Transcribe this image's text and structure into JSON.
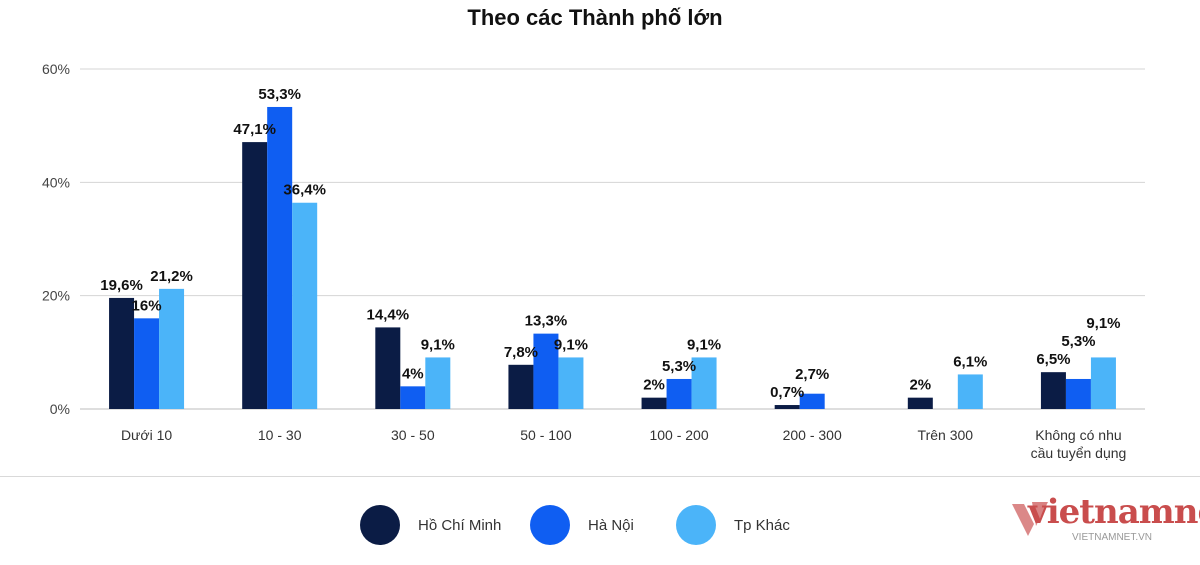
{
  "chart_data": {
    "type": "bar",
    "title": "Theo các Thành phố lớn",
    "categories": [
      "Dưới 10",
      "10 - 30",
      "30 - 50",
      "50 - 100",
      "100 - 200",
      "200 - 300",
      "Trên 300",
      "Không có nhu cầu tuyển dụng"
    ],
    "category_lines": [
      [
        "Dưới 10"
      ],
      [
        "10 - 30"
      ],
      [
        "30 - 50"
      ],
      [
        "50 - 100"
      ],
      [
        "100 - 200"
      ],
      [
        "200 - 300"
      ],
      [
        "Trên 300"
      ],
      [
        "Không có nhu",
        "cầu tuyển dụng"
      ]
    ],
    "series": [
      {
        "name": "Hồ Chí Minh",
        "color": "#0b1c45",
        "values": [
          19.6,
          47.1,
          14.4,
          7.8,
          2,
          0.7,
          2,
          6.5
        ],
        "labels": [
          "19,6%",
          "47,1%",
          "14,4%",
          "7,8%",
          "2%",
          "0,7%",
          "2%",
          "6,5%"
        ]
      },
      {
        "name": "Hà Nội",
        "color": "#0f5ef2",
        "values": [
          16,
          53.3,
          4,
          13.3,
          5.3,
          2.7,
          null,
          5.3
        ],
        "labels": [
          "16%",
          "53,3%",
          "4%",
          "13,3%",
          "5,3%",
          "2,7%",
          null,
          "5,3%"
        ]
      },
      {
        "name": "Tp Khác",
        "color": "#4bb4f9",
        "values": [
          21.2,
          36.4,
          9.1,
          9.1,
          9.1,
          null,
          6.1,
          9.1
        ],
        "labels": [
          "21,2%",
          "36,4%",
          "9,1%",
          "9,1%",
          "9,1%",
          null,
          "6,1%",
          "9,1%"
        ]
      }
    ],
    "ylim": [
      0,
      60
    ],
    "yticks": [
      0,
      20,
      40,
      60
    ],
    "ytick_labels": [
      "0%",
      "20%",
      "40%",
      "60%"
    ],
    "grid": true,
    "legend_position": "bottom-center"
  },
  "watermark": {
    "logo": "vietnamnet",
    "sub": "VIETNAMNET.VN"
  }
}
